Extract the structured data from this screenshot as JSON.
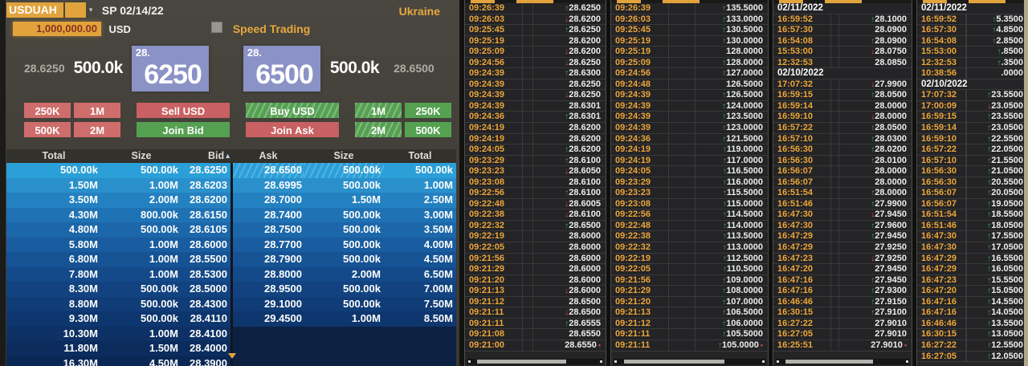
{
  "colors": {
    "accent_amber": "#e2a33c",
    "up_green": "#36b24e",
    "down_red": "#e04846",
    "bid_box_blue": "#8a92c6",
    "buy_green": "#55a152",
    "sell_red": "#c96062"
  },
  "left_panel": {
    "ticker": "USDUAH",
    "dropdown_icon": "▾",
    "settlement_label": "SP 02/14/22",
    "country": "Ukraine",
    "amount_value": "1,000,000.00",
    "amount_currency": "USD",
    "speed_trading_label": "Speed Trading",
    "bid_price_outer": "28.6250",
    "bid_size": "500.0k",
    "bid_handle": "28.",
    "bid_pips": "6250",
    "ask_handle": "28.",
    "ask_pips": "6500",
    "ask_size": "500.0k",
    "ask_price_outer": "28.6500",
    "size_buttons_left": [
      "250K",
      "1M",
      "500K",
      "2M"
    ],
    "sell_button": "Sell USD",
    "join_bid_button": "Join Bid",
    "buy_button": "Buy USD",
    "join_ask_button": "Join Ask",
    "size_buttons_right": [
      "1M",
      "250K",
      "2M",
      "500K"
    ],
    "book": {
      "headers": [
        "Total",
        "Size",
        "Bid",
        "Ask",
        "Size",
        "Total"
      ],
      "sort_icon": "▲",
      "bids": [
        {
          "total": "500.00k",
          "size": "500.00k",
          "price": "28.6250"
        },
        {
          "total": "1.50M",
          "size": "1.00M",
          "price": "28.6203"
        },
        {
          "total": "3.50M",
          "size": "2.00M",
          "price": "28.6200"
        },
        {
          "total": "4.30M",
          "size": "800.00k",
          "price": "28.6150"
        },
        {
          "total": "4.80M",
          "size": "500.00k",
          "price": "28.6105"
        },
        {
          "total": "5.80M",
          "size": "1.00M",
          "price": "28.6000"
        },
        {
          "total": "6.80M",
          "size": "1.00M",
          "price": "28.5500"
        },
        {
          "total": "7.80M",
          "size": "1.00M",
          "price": "28.5300"
        },
        {
          "total": "8.30M",
          "size": "500.00k",
          "price": "28.5000"
        },
        {
          "total": "8.80M",
          "size": "500.00k",
          "price": "28.4300"
        },
        {
          "total": "9.30M",
          "size": "500.00k",
          "price": "28.4110"
        },
        {
          "total": "10.30M",
          "size": "1.00M",
          "price": "28.4100"
        },
        {
          "total": "11.80M",
          "size": "1.50M",
          "price": "28.4000"
        },
        {
          "total": "16.30M",
          "size": "4.50M",
          "price": "28.3900"
        }
      ],
      "asks": [
        {
          "price": "28.6500",
          "size": "500.00k",
          "total": "500.00k"
        },
        {
          "price": "28.6995",
          "size": "500.00k",
          "total": "1.00M"
        },
        {
          "price": "28.7000",
          "size": "1.50M",
          "total": "2.50M"
        },
        {
          "price": "28.7400",
          "size": "500.00k",
          "total": "3.00M"
        },
        {
          "price": "28.7500",
          "size": "500.00k",
          "total": "3.50M"
        },
        {
          "price": "28.7700",
          "size": "500.00k",
          "total": "4.00M"
        },
        {
          "price": "28.7900",
          "size": "500.00k",
          "total": "4.50M"
        },
        {
          "price": "28.8000",
          "size": "2.00M",
          "total": "6.50M"
        },
        {
          "price": "28.9500",
          "size": "500.00k",
          "total": "7.00M"
        },
        {
          "price": "29.1000",
          "size": "500.00k",
          "total": "7.50M"
        },
        {
          "price": "29.4500",
          "size": "1.00M",
          "total": "8.50M"
        }
      ]
    }
  },
  "tape_columns": [
    {
      "rows": [
        {
          "time": "09:26:39",
          "dir": "up",
          "price": "28.6250"
        },
        {
          "time": "09:26:03",
          "dir": "down",
          "price": "28.6200"
        },
        {
          "time": "09:25:45",
          "dir": "up",
          "price": "28.6250"
        },
        {
          "time": "09:25:19",
          "dir": "none",
          "price": "28.6200"
        },
        {
          "time": "09:25:09",
          "dir": "down",
          "price": "28.6200"
        },
        {
          "time": "09:24:56",
          "dir": "down",
          "price": "28.6250"
        },
        {
          "time": "09:24:39",
          "dir": "up",
          "price": "28.6300"
        },
        {
          "time": "09:24:39",
          "dir": "none",
          "price": "28.6250"
        },
        {
          "time": "09:24:39",
          "dir": "down",
          "price": "28.6250"
        },
        {
          "time": "09:24:39",
          "dir": "none",
          "price": "28.6301"
        },
        {
          "time": "09:24:36",
          "dir": "up",
          "price": "28.6301"
        },
        {
          "time": "09:24:19",
          "dir": "none",
          "price": "28.6200"
        },
        {
          "time": "09:24:19",
          "dir": "none",
          "price": "28.6200"
        },
        {
          "time": "09:24:05",
          "dir": "up",
          "price": "28.6200"
        },
        {
          "time": "09:23:29",
          "dir": "up",
          "price": "28.6100"
        },
        {
          "time": "09:23:23",
          "dir": "down",
          "price": "28.6050"
        },
        {
          "time": "09:23:08",
          "dir": "none",
          "price": "28.6100"
        },
        {
          "time": "09:22:56",
          "dir": "up",
          "price": "28.6100"
        },
        {
          "time": "09:22:48",
          "dir": "down",
          "price": "28.6005"
        },
        {
          "time": "09:22:38",
          "dir": "down",
          "price": "28.6100"
        },
        {
          "time": "09:22:32",
          "dir": "up",
          "price": "28.6500"
        },
        {
          "time": "09:22:19",
          "dir": "none",
          "price": "28.6000"
        },
        {
          "time": "09:22:05",
          "dir": "none",
          "price": "28.6000"
        },
        {
          "time": "09:21:56",
          "dir": "none",
          "price": "28.6000"
        },
        {
          "time": "09:21:29",
          "dir": "none",
          "price": "28.6000"
        },
        {
          "time": "09:21:20",
          "dir": "none",
          "price": "28.6000"
        },
        {
          "time": "09:21:13",
          "dir": "down",
          "price": "28.6000"
        },
        {
          "time": "09:21:12",
          "dir": "none",
          "price": "28.6500"
        },
        {
          "time": "09:21:11",
          "dir": "down",
          "price": "28.6500"
        },
        {
          "time": "09:21:11",
          "dir": "up",
          "price": "28.6555"
        },
        {
          "time": "09:21:08",
          "dir": "none",
          "price": "28.6550"
        },
        {
          "time": "09:21:00",
          "dir": "none",
          "price": "28.6550",
          "marker": true
        }
      ]
    },
    {
      "rows": [
        {
          "time": "09:26:39",
          "dir": "up",
          "price": "135.5000"
        },
        {
          "time": "09:26:03",
          "dir": "up",
          "price": "133.0000"
        },
        {
          "time": "09:25:45",
          "dir": "up",
          "price": "130.5000"
        },
        {
          "time": "09:25:19",
          "dir": "up",
          "price": "130.0000"
        },
        {
          "time": "09:25:19",
          "dir": "none",
          "price": "128.0000"
        },
        {
          "time": "09:25:09",
          "dir": "up",
          "price": "128.0000"
        },
        {
          "time": "09:24:56",
          "dir": "up",
          "price": "127.0000"
        },
        {
          "time": "09:24:48",
          "dir": "none",
          "price": "126.5000"
        },
        {
          "time": "09:24:39",
          "dir": "up",
          "price": "126.5000"
        },
        {
          "time": "09:24:39",
          "dir": "up",
          "price": "124.0000"
        },
        {
          "time": "09:24:39",
          "dir": "up",
          "price": "123.5000"
        },
        {
          "time": "09:24:39",
          "dir": "up",
          "price": "123.0000"
        },
        {
          "time": "09:24:36",
          "dir": "up",
          "price": "121.5000"
        },
        {
          "time": "09:24:19",
          "dir": "up",
          "price": "119.0000"
        },
        {
          "time": "09:24:19",
          "dir": "up",
          "price": "117.0000"
        },
        {
          "time": "09:24:05",
          "dir": "up",
          "price": "116.5000"
        },
        {
          "time": "09:23:29",
          "dir": "up",
          "price": "116.0000"
        },
        {
          "time": "09:23:23",
          "dir": "up",
          "price": "115.5000"
        },
        {
          "time": "09:23:08",
          "dir": "up",
          "price": "115.0000"
        },
        {
          "time": "09:22:56",
          "dir": "up",
          "price": "114.5000"
        },
        {
          "time": "09:22:48",
          "dir": "up",
          "price": "114.0000"
        },
        {
          "time": "09:22:38",
          "dir": "up",
          "price": "113.5000"
        },
        {
          "time": "09:22:32",
          "dir": "up",
          "price": "113.0000"
        },
        {
          "time": "09:22:19",
          "dir": "up",
          "price": "112.5000"
        },
        {
          "time": "09:22:05",
          "dir": "up",
          "price": "110.5000"
        },
        {
          "time": "09:21:56",
          "dir": "up",
          "price": "109.0000"
        },
        {
          "time": "09:21:29",
          "dir": "up",
          "price": "108.0000"
        },
        {
          "time": "09:21:20",
          "dir": "up",
          "price": "107.0000"
        },
        {
          "time": "09:21:13",
          "dir": "up",
          "price": "106.5000"
        },
        {
          "time": "09:21:12",
          "dir": "up",
          "price": "106.0000"
        },
        {
          "time": "09:21:11",
          "dir": "up",
          "price": "105.5000"
        },
        {
          "time": "09:21:11",
          "dir": "up",
          "price": "105.0000",
          "marker": true
        }
      ]
    },
    {
      "rows": [
        {
          "date": "02/11/2022"
        },
        {
          "time": "16:59:52",
          "dir": "up",
          "price": "28.1000"
        },
        {
          "time": "16:57:30",
          "dir": "none",
          "price": "28.0900"
        },
        {
          "time": "16:54:08",
          "dir": "up",
          "price": "28.0900"
        },
        {
          "time": "15:53:00",
          "dir": "down",
          "price": "28.0750"
        },
        {
          "time": "12:32:53",
          "dir": "none",
          "price": "28.0850"
        },
        {
          "date": "02/10/2022"
        },
        {
          "time": "17:07:32",
          "dir": "down",
          "price": "27.9900"
        },
        {
          "time": "16:59:15",
          "dir": "up",
          "price": "28.0500"
        },
        {
          "time": "16:59:14",
          "dir": "none",
          "price": "28.0000"
        },
        {
          "time": "16:59:10",
          "dir": "down",
          "price": "28.0000"
        },
        {
          "time": "16:57:22",
          "dir": "up",
          "price": "28.0500"
        },
        {
          "time": "16:57:10",
          "dir": "up",
          "price": "28.0300"
        },
        {
          "time": "16:56:30",
          "dir": "up",
          "price": "28.0200"
        },
        {
          "time": "16:56:30",
          "dir": "up",
          "price": "28.0100"
        },
        {
          "time": "16:56:07",
          "dir": "none",
          "price": "28.0000"
        },
        {
          "time": "16:56:07",
          "dir": "none",
          "price": "28.0000"
        },
        {
          "time": "16:51:54",
          "dir": "up",
          "price": "28.0000"
        },
        {
          "time": "16:51:46",
          "dir": "up",
          "price": "27.9900"
        },
        {
          "time": "16:47:30",
          "dir": "down",
          "price": "27.9450"
        },
        {
          "time": "16:47:30",
          "dir": "up",
          "price": "27.9600"
        },
        {
          "time": "16:47:29",
          "dir": "up",
          "price": "27.9450"
        },
        {
          "time": "16:47:29",
          "dir": "none",
          "price": "27.9250"
        },
        {
          "time": "16:47:23",
          "dir": "down",
          "price": "27.9250"
        },
        {
          "time": "16:47:20",
          "dir": "none",
          "price": "27.9450"
        },
        {
          "time": "16:47:16",
          "dir": "up",
          "price": "27.9450"
        },
        {
          "time": "16:47:16",
          "dir": "up",
          "price": "27.9300"
        },
        {
          "time": "16:46:46",
          "dir": "up",
          "price": "27.9150"
        },
        {
          "time": "16:30:15",
          "dir": "up",
          "price": "27.9100"
        },
        {
          "time": "16:27:22",
          "dir": "none",
          "price": "27.9010"
        },
        {
          "time": "16:27:05",
          "dir": "none",
          "price": "27.9010"
        },
        {
          "time": "16:25:51",
          "dir": "none",
          "price": "27.9010",
          "marker": true
        }
      ]
    },
    {
      "rows": [
        {
          "date": "02/11/2022"
        },
        {
          "time": "16:59:52",
          "dir": "up",
          "price": "5.3500"
        },
        {
          "time": "16:57:30",
          "dir": "up",
          "price": "4.8500"
        },
        {
          "time": "16:54:08",
          "dir": "up",
          "price": "2.8500"
        },
        {
          "time": "15:53:00",
          "dir": "up",
          "price": ".8500"
        },
        {
          "time": "12:32:53",
          "dir": "up",
          "price": ".3500"
        },
        {
          "time": "10:38:56",
          "dir": "none",
          "price": ".0000"
        },
        {
          "date": "02/10/2022"
        },
        {
          "time": "17:07:32",
          "dir": "up",
          "price": "23.5500"
        },
        {
          "time": "17:00:09",
          "dir": "down",
          "price": "23.0500"
        },
        {
          "time": "16:59:15",
          "dir": "up",
          "price": "23.5500"
        },
        {
          "time": "16:59:14",
          "dir": "up",
          "price": "23.0500"
        },
        {
          "time": "16:59:10",
          "dir": "up",
          "price": "22.5500"
        },
        {
          "time": "16:57:22",
          "dir": "up",
          "price": "22.0500"
        },
        {
          "time": "16:57:10",
          "dir": "up",
          "price": "21.5500"
        },
        {
          "time": "16:56:30",
          "dir": "up",
          "price": "21.0500"
        },
        {
          "time": "16:56:30",
          "dir": "up",
          "price": "20.5500"
        },
        {
          "time": "16:56:07",
          "dir": "up",
          "price": "20.0500"
        },
        {
          "time": "16:56:07",
          "dir": "up",
          "price": "19.0500"
        },
        {
          "time": "16:51:54",
          "dir": "up",
          "price": "18.5500"
        },
        {
          "time": "16:51:46",
          "dir": "up",
          "price": "18.0500"
        },
        {
          "time": "16:47:30",
          "dir": "up",
          "price": "17.5500"
        },
        {
          "time": "16:47:30",
          "dir": "up",
          "price": "17.0500"
        },
        {
          "time": "16:47:29",
          "dir": "up",
          "price": "16.5500"
        },
        {
          "time": "16:47:29",
          "dir": "up",
          "price": "16.0500"
        },
        {
          "time": "16:47:23",
          "dir": "up",
          "price": "15.5500"
        },
        {
          "time": "16:47:20",
          "dir": "up",
          "price": "15.0500"
        },
        {
          "time": "16:47:16",
          "dir": "up",
          "price": "14.5500"
        },
        {
          "time": "16:47:16",
          "dir": "up",
          "price": "14.0500"
        },
        {
          "time": "16:46:46",
          "dir": "up",
          "price": "13.5500"
        },
        {
          "time": "16:30:15",
          "dir": "up",
          "price": "13.0500"
        },
        {
          "time": "16:27:22",
          "dir": "up",
          "price": "12.5500"
        },
        {
          "time": "16:27:05",
          "dir": "up",
          "price": "12.0500"
        }
      ]
    }
  ]
}
